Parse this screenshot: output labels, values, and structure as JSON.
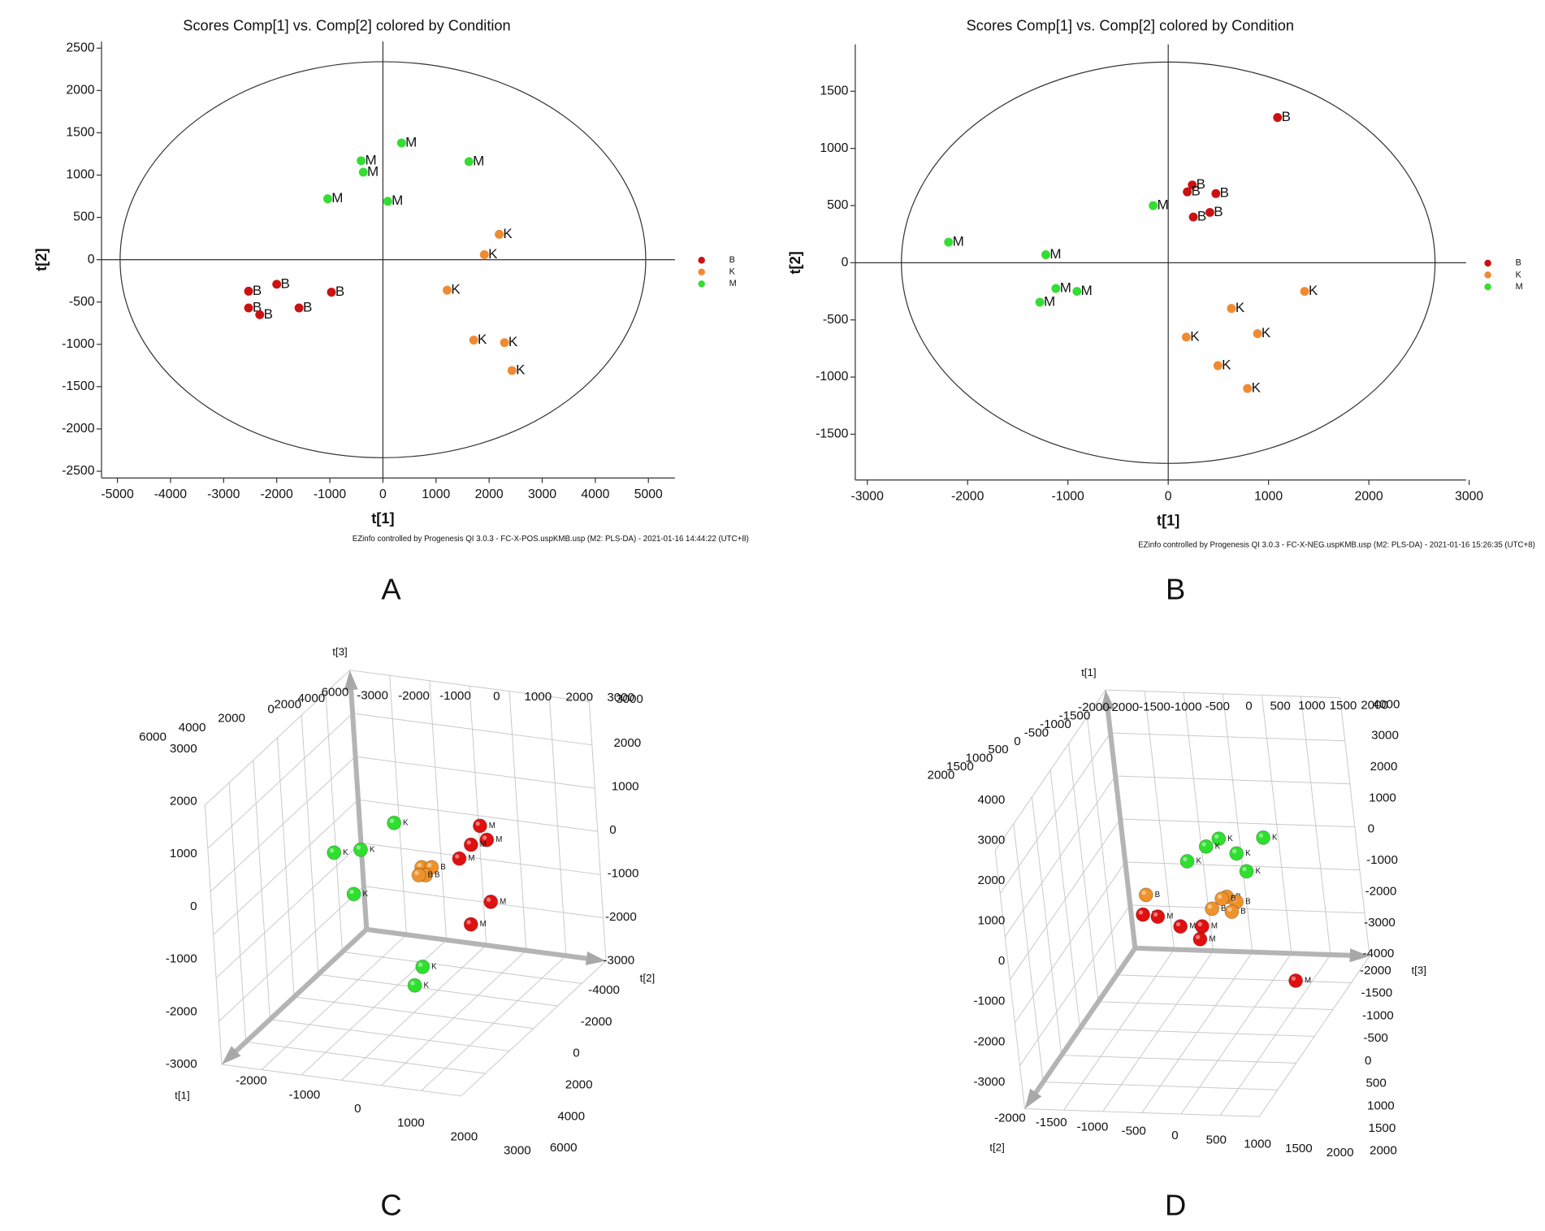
{
  "chart_data": [
    {
      "type": "scatter",
      "panel_label": "A",
      "title": "Scores Comp[1] vs. Comp[2] colored by Condition",
      "xlabel": "t[1]",
      "ylabel": "t[2]",
      "footnote": "EZinfo controlled by Progenesis QI 3.0.3 - FC-X-POS.uspKMB.usp (M2: PLS-DA) - 2021-01-16 14:44:22 (UTC+8)",
      "xlim": [
        -5300,
        5500
      ],
      "ylim": [
        -2580,
        2580
      ],
      "xticks": [
        -5000,
        -4000,
        -3000,
        -2000,
        -1000,
        0,
        1000,
        2000,
        3000,
        4000,
        5000
      ],
      "yticks": [
        -2500,
        -2000,
        -1500,
        -1000,
        -500,
        0,
        500,
        1000,
        1500,
        2000,
        2500
      ],
      "ellipse_radii": [
        4950,
        2340
      ],
      "series": [
        {
          "name": "B",
          "color": "#cc1111",
          "x": [
            -2530,
            -2530,
            -2320,
            -2000,
            -1580,
            -970
          ],
          "y": [
            -372,
            -570,
            -650,
            -290,
            -570,
            -384
          ]
        },
        {
          "name": "K",
          "color": "#f08a30",
          "x": [
            2190,
            1910,
            1210,
            1710,
            2290,
            2430
          ],
          "y": [
            300,
            60,
            -360,
            -950,
            -980,
            -1310
          ]
        },
        {
          "name": "M",
          "color": "#33dd33",
          "x": [
            -1040,
            -410,
            -370,
            350,
            90,
            1620
          ],
          "y": [
            720,
            1170,
            1035,
            1380,
            690,
            1160
          ]
        }
      ]
    },
    {
      "type": "scatter",
      "panel_label": "B",
      "title": "Scores Comp[1] vs. Comp[2] colored by Condition",
      "xlabel": "t[1]",
      "ylabel": "t[2]",
      "footnote": "EZinfo controlled by Progenesis QI 3.0.3 - FC-X-NEG.uspKMB.usp (M2: PLS-DA) - 2021-01-16 15:26:35 (UTC+8)",
      "xlim": [
        -3120,
        2970
      ],
      "ylim": [
        -1900,
        1910
      ],
      "xticks": [
        -3000,
        -2000,
        -1000,
        0,
        1000,
        2000,
        3000
      ],
      "yticks": [
        -1500,
        -1000,
        -500,
        0,
        500,
        1000,
        1500
      ],
      "ellipse_radii": [
        2660,
        1755
      ],
      "series": [
        {
          "name": "B",
          "color": "#cc1111",
          "x": [
            1090,
            240,
            190,
            475,
            250,
            415
          ],
          "y": [
            1270,
            680,
            620,
            605,
            400,
            440
          ]
        },
        {
          "name": "K",
          "color": "#f08a30",
          "x": [
            1360,
            630,
            180,
            890,
            495,
            790
          ],
          "y": [
            -250,
            -400,
            -650,
            -620,
            -900,
            -1100
          ]
        },
        {
          "name": "M",
          "color": "#33dd33",
          "x": [
            -2190,
            -1220,
            -150,
            -1120,
            -1280,
            -910
          ],
          "y": [
            180,
            70,
            500,
            -225,
            -345,
            -250
          ]
        }
      ]
    },
    {
      "type": "scatter3d",
      "panel_label": "C",
      "axis_labels": [
        "t[1]",
        "t[2]",
        "t[3]"
      ],
      "t1lim": [
        -3000,
        3000
      ],
      "t2lim": [
        -4000,
        6000
      ],
      "t3lim": [
        -3000,
        3000
      ],
      "tick_groups": [
        [
          -3000,
          -2000,
          -1000,
          0,
          1000,
          2000,
          3000
        ],
        [
          6000,
          4000,
          2000,
          0
        ],
        [
          2000,
          4000,
          6000
        ],
        [
          -3000,
          -2000,
          -1000,
          0,
          1000,
          2000,
          3000
        ],
        [
          -3000,
          -2000,
          -1000,
          0,
          1000,
          2000,
          3000
        ],
        [
          -4000,
          -2000,
          0,
          2000,
          4000,
          6000
        ],
        [
          -2000,
          -1000,
          0,
          1000,
          2000,
          3000
        ]
      ],
      "series": [
        {
          "name": "K",
          "color": "#2ee02e",
          "t1": [
            -1200,
            -1200,
            -1200,
            -1200,
            -1200,
            -1200
          ],
          "t2": [
            -610,
            -3220,
            -2090,
            -2500,
            200,
            -180
          ],
          "t3": [
            650,
            -228,
            -78,
            -1134,
            -2622,
            -3080
          ]
        },
        {
          "name": "M",
          "color": "#e01010",
          "t1": [
            -1200,
            -1200,
            -1200,
            -1200,
            -1200,
            -1200
          ],
          "t2": [
            3000,
            3250,
            2570,
            2040,
            3250,
            2350
          ],
          "t3": [
            846,
            540,
            378,
            18,
            -894,
            -1482
          ]
        },
        {
          "name": "B",
          "color": "#f0922a",
          "t1": [
            -1200,
            -1200,
            -1200,
            -1200
          ],
          "t2": [
            430,
            850,
            580,
            290
          ],
          "t3": [
            -300,
            -270,
            -474,
            -492
          ]
        }
      ]
    },
    {
      "type": "scatter3d",
      "panel_label": "D",
      "axis_labels": [
        "t[1]",
        "t[2]",
        "t[3]"
      ],
      "t1lim": [
        -3000,
        4000
      ],
      "t2lim": [
        -2000,
        2000
      ],
      "t3lim": [
        -2000,
        2000
      ],
      "tick_groups": [
        [
          -3000,
          -2000,
          -1000,
          0,
          1000,
          2000,
          3000,
          4000
        ],
        [
          2000,
          1500,
          1000,
          500,
          0,
          -500,
          -1000,
          -1500,
          -2000
        ],
        [
          -2000,
          -1500,
          -1000,
          -500,
          0,
          500,
          1000,
          1500,
          2000
        ],
        [
          -4000,
          -3000,
          -2000,
          -1000,
          0,
          1000,
          2000,
          3000,
          4000
        ],
        [
          -2000,
          -1500,
          -1000,
          -500,
          0,
          500,
          1000,
          1500,
          2000
        ],
        [
          -2000,
          -1500,
          -1000,
          -500,
          0,
          500,
          1000,
          1500,
          2000
        ]
      ],
      "series": [
        {
          "name": "K",
          "color": "#2ee02e",
          "t1": [
            1466,
            1396,
            1172,
            1011,
            752,
            535
          ],
          "t2": [
            -800,
            -800,
            -800,
            -800,
            -800,
            -800
          ],
          "t3": [
            1072,
            308,
            76,
            584,
            -276,
            720
          ]
        },
        {
          "name": "M",
          "color": "#e01010",
          "t1": [
            -2397,
            -739,
            -781,
            -1026,
            -1005,
            -1355
          ],
          "t2": [
            -800,
            -800,
            -800,
            -800,
            -800,
            -800
          ],
          "t3": [
            1348,
            -1138,
            -888,
            -520,
            -148,
            -208
          ]
        },
        {
          "name": "B",
          "color": "#f0922a",
          "t1": [
            -200,
            -515,
            -179,
            -305,
            -578,
            -235
          ],
          "t2": [
            -800,
            -800,
            -800,
            -800,
            -800,
            -800
          ],
          "t3": [
            -1048,
            56,
            332,
            488,
            388,
            244
          ]
        }
      ]
    }
  ]
}
